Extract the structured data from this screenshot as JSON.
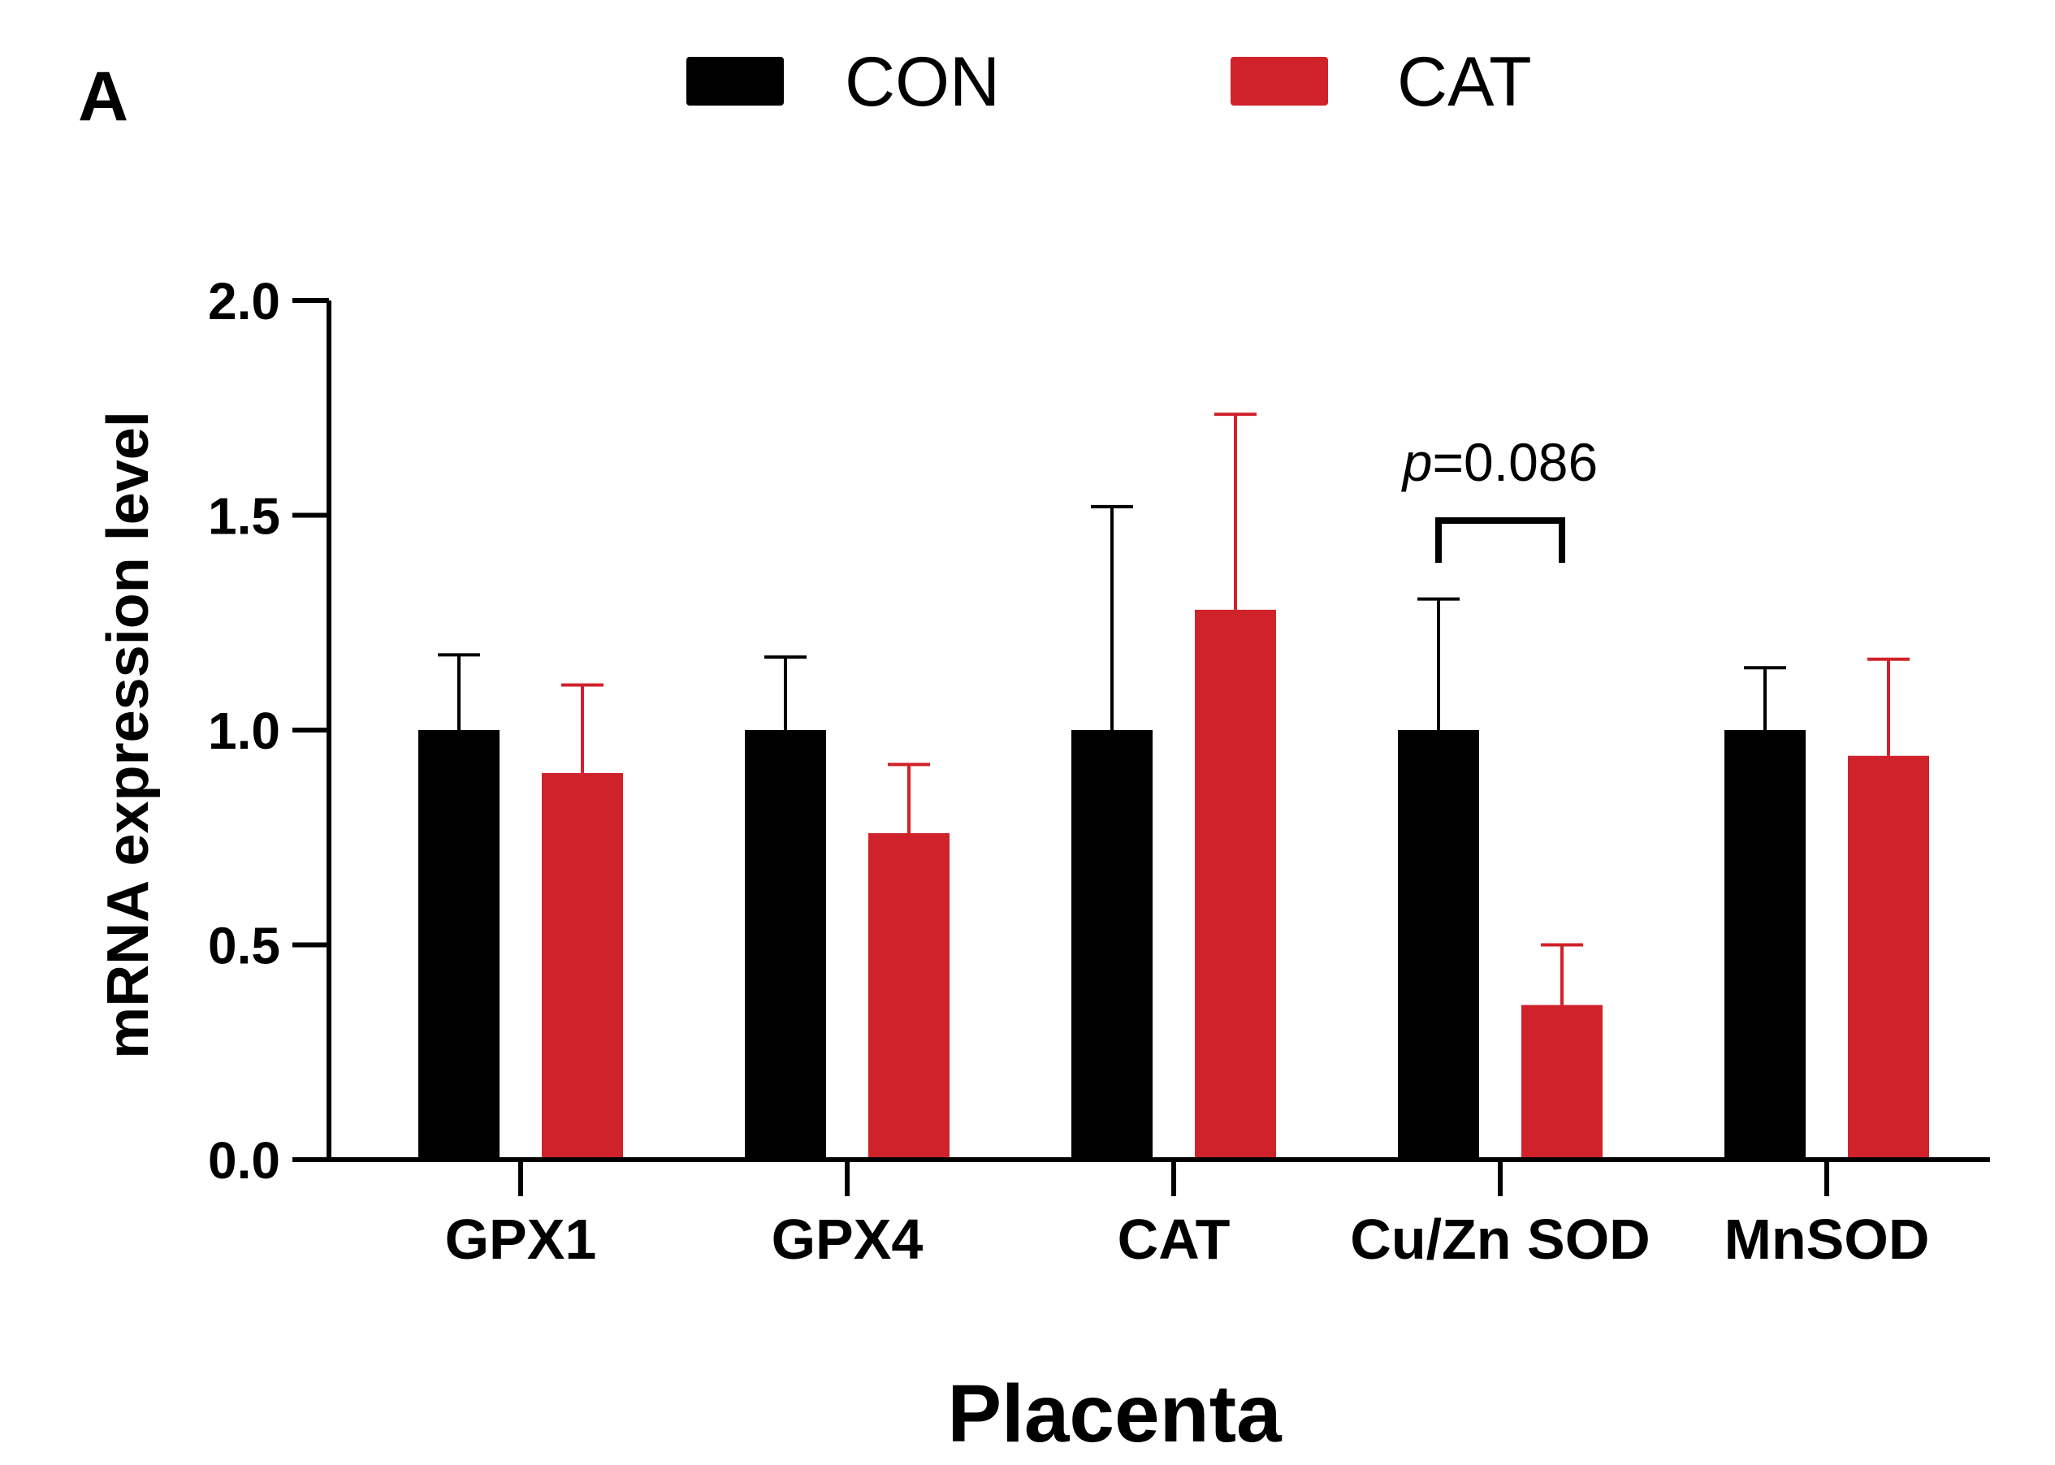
{
  "panel_label": "A",
  "chart_data": {
    "type": "bar",
    "title": "",
    "xlabel": "Placenta",
    "ylabel": "mRNA expression level",
    "ylim": [
      0,
      2.0
    ],
    "yticks": [
      0.0,
      0.5,
      1.0,
      1.5,
      2.0
    ],
    "ytick_labels": [
      "0.0",
      "0.5",
      "1.0",
      "1.5",
      "2.0"
    ],
    "categories": [
      "GPX1",
      "GPX4",
      "CAT",
      "Cu/Zn SOD",
      "MnSOD"
    ],
    "legend_position": "top",
    "grid": false,
    "series": [
      {
        "name": "CON",
        "color": "#000000",
        "values": [
          1.0,
          1.0,
          1.0,
          1.0,
          1.0
        ],
        "error": [
          0.175,
          0.17,
          0.52,
          0.305,
          0.145
        ]
      },
      {
        "name": "CAT",
        "color": "#d0222a",
        "values": [
          0.9,
          0.76,
          1.28,
          0.36,
          0.94
        ],
        "error": [
          0.205,
          0.16,
          0.455,
          0.14,
          0.225
        ]
      }
    ],
    "annotations": [
      {
        "category_index": 3,
        "p_symbol": "p",
        "p_value": "=0.086"
      }
    ]
  }
}
